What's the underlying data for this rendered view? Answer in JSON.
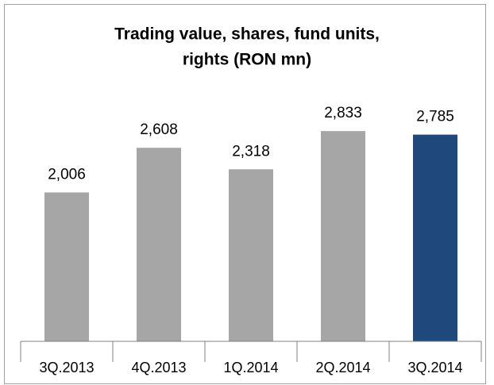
{
  "chart_data": {
    "type": "bar",
    "title": [
      "Trading value, shares, fund units,",
      "rights (RON mn)"
    ],
    "categories": [
      "3Q.2013",
      "4Q.2013",
      "1Q.2014",
      "2Q.2014",
      "3Q.2014"
    ],
    "values": [
      2006,
      2608,
      2318,
      2833,
      2785
    ],
    "value_labels": [
      "2,006",
      "2,608",
      "2,318",
      "2,833",
      "2,785"
    ],
    "colors": [
      "#a6a6a6",
      "#a6a6a6",
      "#a6a6a6",
      "#a6a6a6",
      "#1f497d"
    ],
    "ylim": [
      0,
      3000
    ]
  }
}
